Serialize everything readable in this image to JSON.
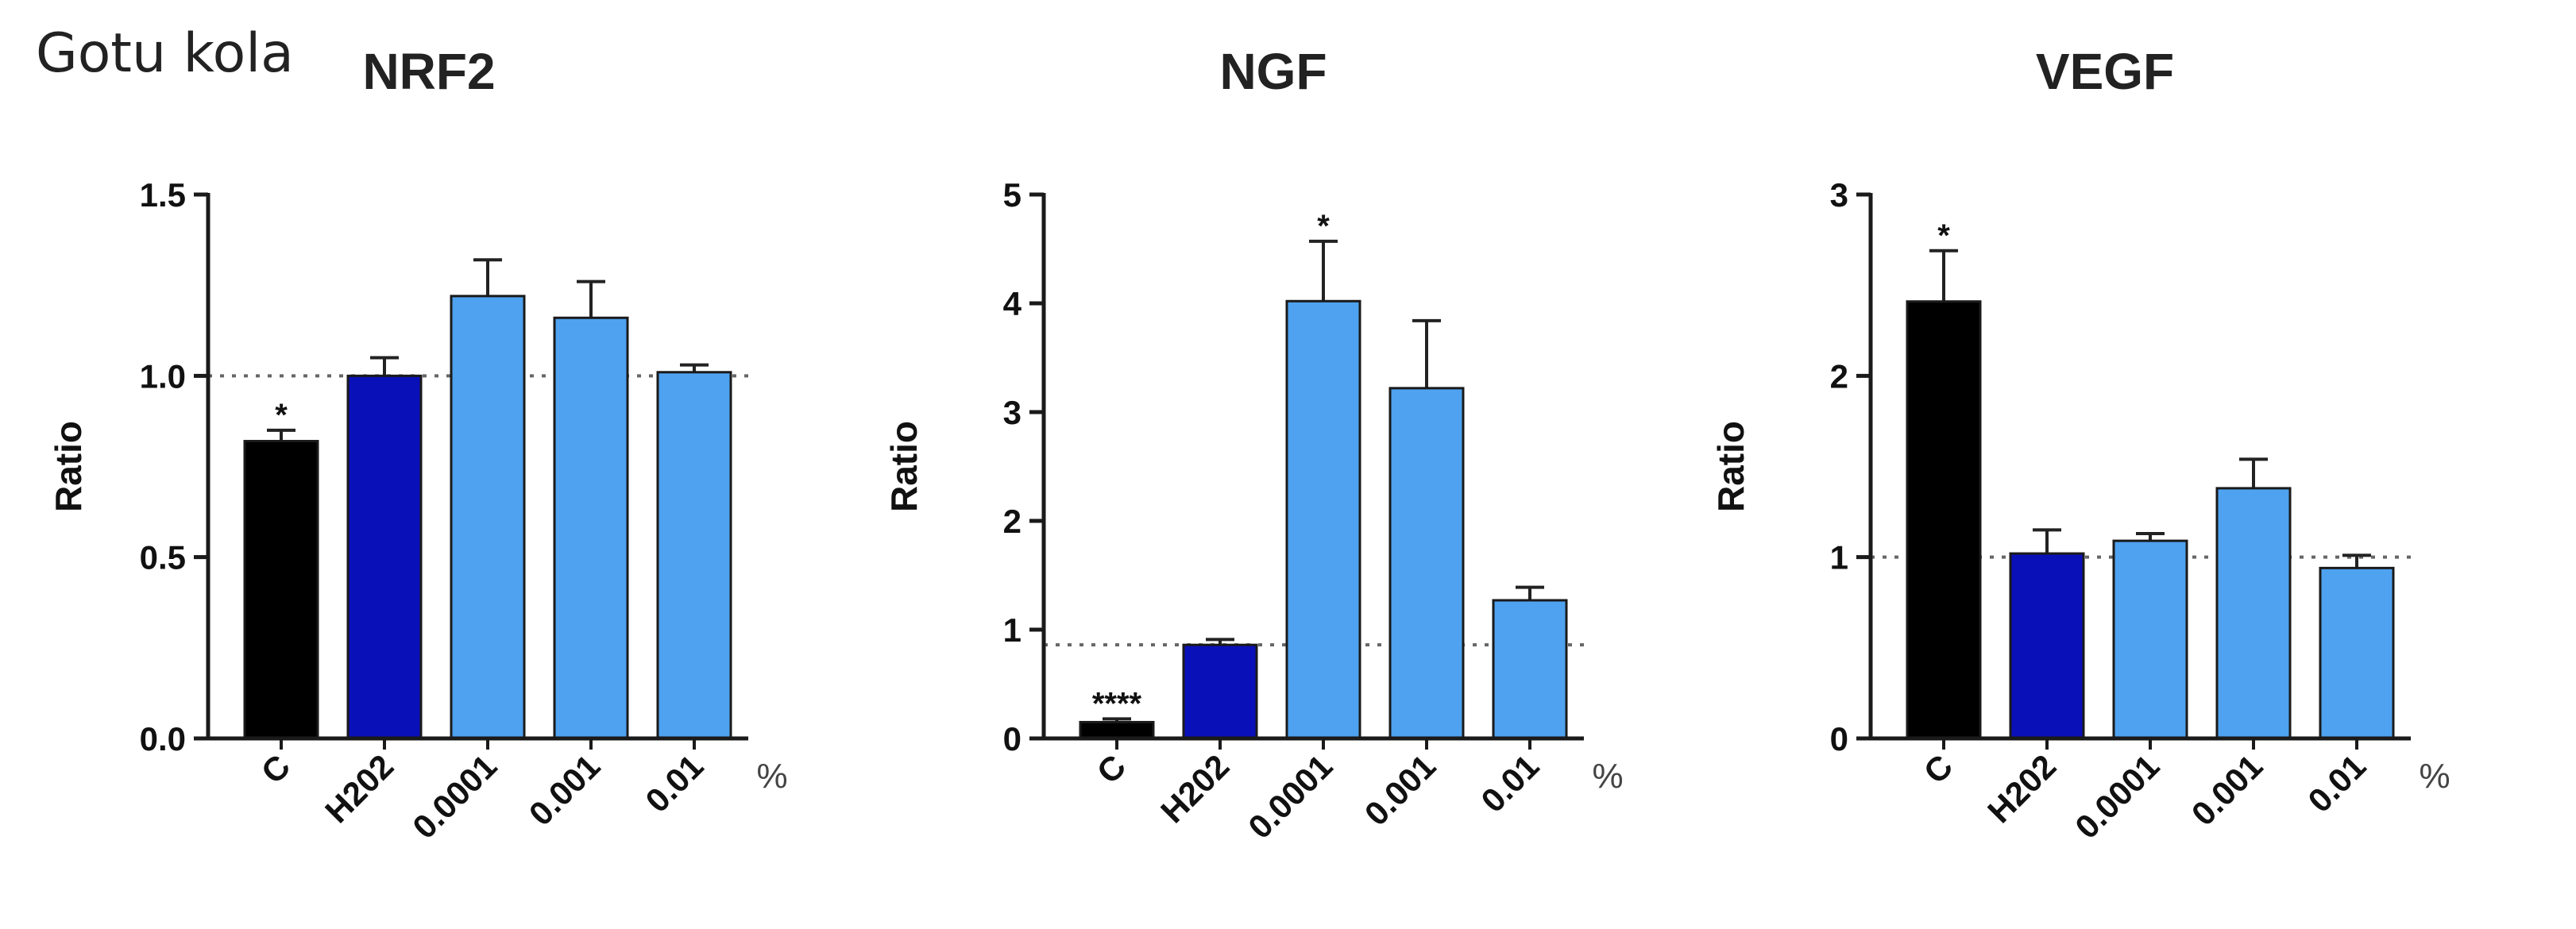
{
  "figure_label": "Gotu kola",
  "percent_symbol": "%",
  "colors": {
    "control": "#000000",
    "h2o2": "#0a10b8",
    "treatment": "#4ea2f0",
    "axis": "#1a1a1a",
    "dotted": "#666666"
  },
  "chart_data": [
    {
      "type": "bar",
      "title": "NRF2",
      "ylabel": "Ratio",
      "categories": [
        "C",
        "H202",
        "0.0001",
        "0.001",
        "0.01"
      ],
      "values": [
        0.82,
        1.0,
        1.22,
        1.16,
        1.01
      ],
      "errors": [
        0.03,
        0.05,
        0.1,
        0.1,
        0.02
      ],
      "significance": [
        "*",
        "",
        "",
        "",
        ""
      ],
      "ylim": [
        0,
        1.5
      ],
      "yticks": [
        "0.0",
        "0.5",
        "1.0",
        "1.5"
      ],
      "reference_line": 1.0
    },
    {
      "type": "bar",
      "title": "NGF",
      "ylabel": "Ratio",
      "categories": [
        "C",
        "H202",
        "0.0001",
        "0.001",
        "0.01"
      ],
      "values": [
        0.15,
        0.86,
        4.02,
        3.22,
        1.27
      ],
      "errors": [
        0.03,
        0.05,
        0.55,
        0.62,
        0.12
      ],
      "significance": [
        "****",
        "",
        "*",
        "",
        ""
      ],
      "ylim": [
        0,
        5
      ],
      "yticks": [
        "0",
        "1",
        "2",
        "3",
        "4",
        "5"
      ],
      "reference_line": 0.86
    },
    {
      "type": "bar",
      "title": "VEGF",
      "ylabel": "Ratio",
      "categories": [
        "C",
        "H202",
        "0.0001",
        "0.001",
        "0.01"
      ],
      "values": [
        2.41,
        1.02,
        1.09,
        1.38,
        0.94
      ],
      "errors": [
        0.28,
        0.13,
        0.04,
        0.16,
        0.07
      ],
      "significance": [
        "*",
        "",
        "",
        "",
        ""
      ],
      "ylim": [
        0,
        3
      ],
      "yticks": [
        "0",
        "1",
        "2",
        "3"
      ],
      "reference_line": 1.0
    }
  ]
}
